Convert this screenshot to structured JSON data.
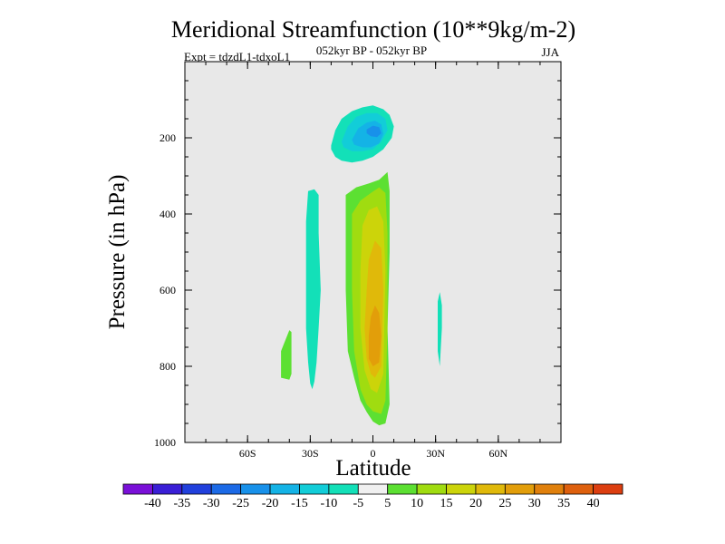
{
  "chart_data": {
    "type": "heatmap",
    "title": "Meridional Streamfunction (10**9kg/m-2)",
    "subtitle_left": "Expt = tdzdL1-tdxoL1",
    "subtitle_center": "052kyr BP - 052kyr BP",
    "subtitle_right": "JJA",
    "xlabel": "Latitude",
    "ylabel": "Pressure (in hPa)",
    "xlim": [
      -90,
      90
    ],
    "ylim": [
      1000,
      0
    ],
    "x_ticks": [
      {
        "value": -60,
        "label": "60S"
      },
      {
        "value": -30,
        "label": "30S"
      },
      {
        "value": 0,
        "label": "0"
      },
      {
        "value": 30,
        "label": "30N"
      },
      {
        "value": 60,
        "label": "60N"
      }
    ],
    "y_ticks": [
      {
        "value": 200,
        "label": "200"
      },
      {
        "value": 400,
        "label": "400"
      },
      {
        "value": 600,
        "label": "600"
      },
      {
        "value": 800,
        "label": "800"
      },
      {
        "value": 1000,
        "label": "1000"
      }
    ],
    "background_color": "#e8e8e8",
    "colorbar": {
      "colors": [
        "#7a10d8",
        "#3a1fd6",
        "#2140dc",
        "#1c6ae6",
        "#1891ea",
        "#14b3e6",
        "#12cdd8",
        "#13e0b8",
        "#f0f0f0",
        "#5ce032",
        "#a0dc10",
        "#ccd40a",
        "#e0b90a",
        "#e29e0a",
        "#e0800c",
        "#de600e",
        "#dc3e10"
      ],
      "labels": [
        "-40",
        "-35",
        "-30",
        "-25",
        "-20",
        "-15",
        "-10",
        "-5",
        "5",
        "10",
        "15",
        "20",
        "25",
        "30",
        "35",
        "40"
      ]
    },
    "regions": [
      {
        "name": "upper-negative-cell-outer",
        "value": -7,
        "color": "#13e0b8",
        "lat": [
          -20,
          -18,
          -15,
          -10,
          -5,
          0,
          5,
          8,
          10,
          9,
          5,
          0,
          -5,
          -10,
          -15,
          -18,
          -20
        ],
        "p": [
          220,
          180,
          150,
          130,
          120,
          115,
          125,
          140,
          170,
          200,
          230,
          250,
          260,
          265,
          260,
          250,
          230
        ]
      },
      {
        "name": "upper-negative-cell-mid",
        "value": -12,
        "color": "#12cdd8",
        "lat": [
          -15,
          -12,
          -8,
          -3,
          2,
          6,
          7,
          4,
          0,
          -5,
          -10,
          -14
        ],
        "p": [
          210,
          170,
          145,
          135,
          135,
          150,
          180,
          210,
          230,
          235,
          235,
          225
        ]
      },
      {
        "name": "upper-negative-cell-inner",
        "value": -17,
        "color": "#14b3e6",
        "lat": [
          -10,
          -7,
          -3,
          1,
          4,
          5,
          3,
          -1,
          -5,
          -9
        ],
        "p": [
          205,
          175,
          160,
          155,
          165,
          190,
          215,
          225,
          225,
          218
        ]
      },
      {
        "name": "upper-negative-cell-core",
        "value": -22,
        "color": "#1891ea",
        "lat": [
          -3,
          0,
          3,
          4,
          2,
          -1,
          -3
        ],
        "p": [
          178,
          168,
          172,
          188,
          198,
          196,
          188
        ]
      },
      {
        "name": "south-negative-band",
        "value": -7,
        "color": "#13e0b8",
        "lat": [
          -31,
          -28,
          -26,
          -26,
          -25,
          -26,
          -27,
          -28,
          -29,
          -30,
          -31,
          -32,
          -32,
          -32
        ],
        "p": [
          340,
          335,
          350,
          450,
          600,
          700,
          790,
          840,
          860,
          845,
          790,
          700,
          550,
          420
        ]
      },
      {
        "name": "far-south-positive-patch",
        "value": 7,
        "color": "#5ce032",
        "lat": [
          -44,
          -40,
          -39,
          -39,
          -40,
          -44
        ],
        "p": [
          760,
          705,
          710,
          820,
          835,
          830
        ]
      },
      {
        "name": "north-negative-sliver",
        "value": -7,
        "color": "#13e0b8",
        "lat": [
          31,
          32,
          33,
          33,
          32,
          31,
          31
        ],
        "p": [
          630,
          605,
          640,
          700,
          800,
          760,
          700
        ]
      },
      {
        "name": "positive-cell-outer",
        "value": 7,
        "color": "#5ce032",
        "lat": [
          -13,
          -8,
          -2,
          3,
          7,
          8,
          8,
          7,
          8,
          6,
          3,
          0,
          -3,
          -6,
          -9,
          -12,
          -13,
          -13
        ],
        "p": [
          350,
          330,
          320,
          310,
          290,
          340,
          500,
          700,
          900,
          950,
          955,
          945,
          920,
          890,
          830,
          760,
          600,
          450
        ]
      },
      {
        "name": "positive-cell-10",
        "value": 12,
        "color": "#a0dc10",
        "lat": [
          -10,
          -6,
          -1,
          3,
          6,
          7,
          7,
          6,
          4,
          0,
          -3,
          -6,
          -9,
          -10
        ],
        "p": [
          400,
          365,
          345,
          330,
          345,
          450,
          700,
          890,
          925,
          918,
          900,
          860,
          760,
          600
        ]
      },
      {
        "name": "positive-cell-15",
        "value": 17,
        "color": "#ccd40a",
        "lat": [
          -5,
          -2,
          2,
          5,
          6,
          5,
          2,
          -1,
          -4,
          -6,
          -6
        ],
        "p": [
          430,
          390,
          380,
          420,
          550,
          820,
          870,
          860,
          810,
          700,
          550
        ]
      },
      {
        "name": "positive-cell-20",
        "value": 22,
        "color": "#e0b90a",
        "lat": [
          -2,
          1,
          4,
          5,
          4,
          1,
          -1,
          -3,
          -4,
          -3
        ],
        "p": [
          520,
          470,
          490,
          600,
          800,
          830,
          820,
          780,
          700,
          600
        ]
      },
      {
        "name": "positive-cell-25",
        "value": 27,
        "color": "#e29e0a",
        "lat": [
          -1,
          1,
          3,
          4,
          3,
          0,
          -2,
          -2
        ],
        "p": [
          670,
          640,
          660,
          720,
          790,
          800,
          780,
          720
        ]
      }
    ]
  }
}
